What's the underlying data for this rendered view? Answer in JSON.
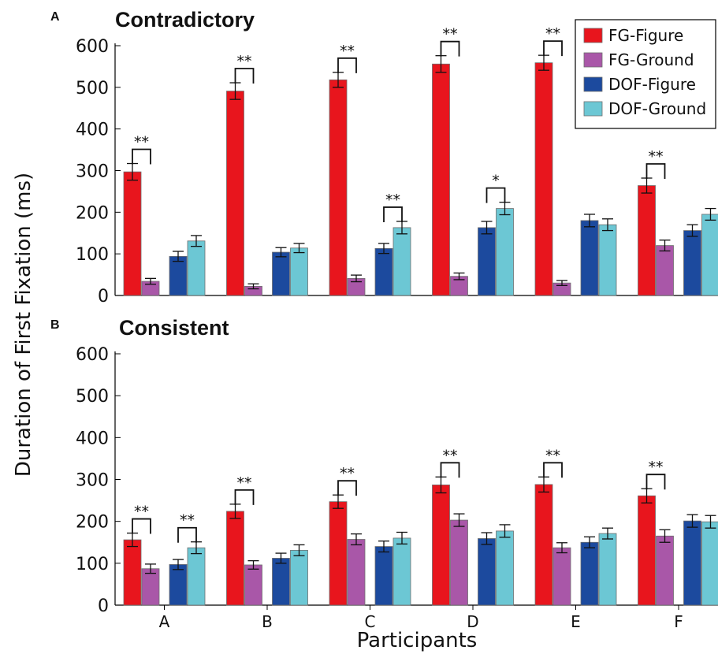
{
  "chart_data": {
    "type": "bar",
    "ylabel": "Duration of First Fixation (ms)",
    "xlabel": "Participants",
    "categories": [
      "A",
      "B",
      "C",
      "D",
      "E",
      "F"
    ],
    "ylim": [
      0,
      600
    ],
    "yticks": [
      "0",
      "100",
      "200",
      "300",
      "400",
      "500",
      "600"
    ],
    "legend": {
      "position": "top-right",
      "panel": "A"
    },
    "series_info": [
      {
        "name": "FG-Figure",
        "color": "#e8151d"
      },
      {
        "name": "FG-Ground",
        "color": "#a957a8"
      },
      {
        "name": "DOF-Figure",
        "color": "#1c4a9e"
      },
      {
        "name": "DOF-Ground",
        "color": "#6cc7d4"
      }
    ],
    "panels": [
      {
        "letter": "A",
        "title": "Contradictory",
        "series": [
          {
            "name": "FG-Figure",
            "values": [
              297,
              491,
              518,
              556,
              559,
              264
            ],
            "errors": [
              20,
              20,
              18,
              20,
              18,
              18
            ]
          },
          {
            "name": "FG-Ground",
            "values": [
              34,
              22,
              41,
              46,
              30,
              120
            ],
            "errors": [
              7,
              6,
              8,
              8,
              6,
              13
            ]
          },
          {
            "name": "DOF-Figure",
            "values": [
              94,
              104,
              113,
              163,
              180,
              156
            ],
            "errors": [
              12,
              11,
              12,
              15,
              15,
              14
            ]
          },
          {
            "name": "DOF-Ground",
            "values": [
              131,
              114,
              163,
              209,
              170,
              195
            ],
            "errors": [
              13,
              11,
              15,
              15,
              14,
              14
            ]
          }
        ],
        "significance": [
          {
            "category": "A",
            "pair": "FG",
            "label": "**"
          },
          {
            "category": "B",
            "pair": "FG",
            "label": "**"
          },
          {
            "category": "C",
            "pair": "FG",
            "label": "**"
          },
          {
            "category": "C",
            "pair": "DOF",
            "label": "**"
          },
          {
            "category": "D",
            "pair": "FG",
            "label": "**"
          },
          {
            "category": "D",
            "pair": "DOF",
            "label": "*"
          },
          {
            "category": "E",
            "pair": "FG",
            "label": "**"
          },
          {
            "category": "F",
            "pair": "FG",
            "label": "**"
          }
        ]
      },
      {
        "letter": "B",
        "title": "Consistent",
        "series": [
          {
            "name": "FG-Figure",
            "values": [
              156,
              224,
              247,
              287,
              288,
              261
            ],
            "errors": [
              16,
              17,
              16,
              19,
              18,
              17
            ]
          },
          {
            "name": "FG-Ground",
            "values": [
              87,
              96,
              157,
              203,
              137,
              165
            ],
            "errors": [
              11,
              10,
              13,
              15,
              12,
              15
            ]
          },
          {
            "name": "DOF-Figure",
            "values": [
              97,
              112,
              140,
              159,
              150,
              201
            ],
            "errors": [
              12,
              12,
              13,
              14,
              13,
              15
            ]
          },
          {
            "name": "DOF-Ground",
            "values": [
              137,
              131,
              160,
              177,
              171,
              199
            ],
            "errors": [
              14,
              13,
              14,
              15,
              13,
              15
            ]
          }
        ],
        "significance": [
          {
            "category": "A",
            "pair": "FG",
            "label": "**"
          },
          {
            "category": "A",
            "pair": "DOF",
            "label": "**"
          },
          {
            "category": "B",
            "pair": "FG",
            "label": "**"
          },
          {
            "category": "C",
            "pair": "FG",
            "label": "**"
          },
          {
            "category": "D",
            "pair": "FG",
            "label": "**"
          },
          {
            "category": "E",
            "pair": "FG",
            "label": "**"
          },
          {
            "category": "F",
            "pair": "FG",
            "label": "**"
          }
        ]
      }
    ]
  }
}
